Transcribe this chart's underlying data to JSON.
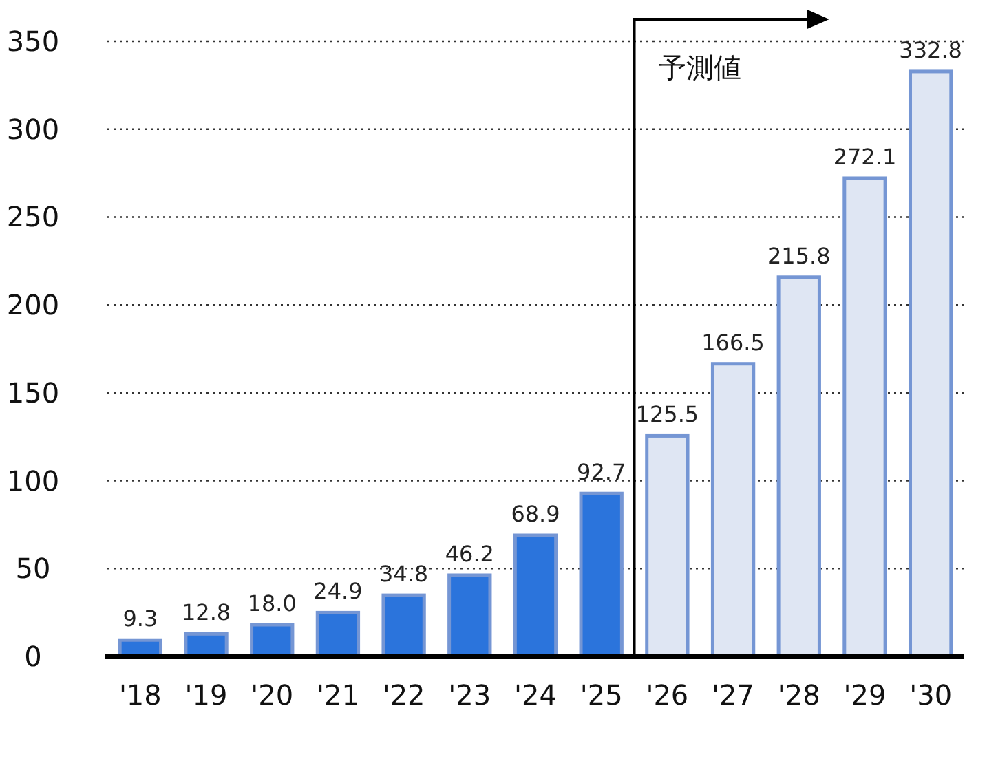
{
  "chart_data": {
    "type": "bar",
    "categories": [
      "'18",
      "'19",
      "'20",
      "'21",
      "'22",
      "'23",
      "'24",
      "'25",
      "'26",
      "'27",
      "'28",
      "'29",
      "'30"
    ],
    "values": [
      9.3,
      12.8,
      18.0,
      24.9,
      34.8,
      46.2,
      68.9,
      92.7,
      125.5,
      166.5,
      215.8,
      272.1,
      332.8
    ],
    "value_labels": [
      "9.3",
      "12.8",
      "18.0",
      "24.9",
      "34.8",
      "46.2",
      "68.9",
      "92.7",
      "125.5",
      "166.5",
      "215.8",
      "272.1",
      "332.8"
    ],
    "colors": [
      "#2b74dc",
      "#2b74dc",
      "#2b74dc",
      "#2b74dc",
      "#2b74dc",
      "#2b74dc",
      "#2b74dc",
      "#2b74dc",
      "#dfe6f3",
      "#dfe6f3",
      "#dfe6f3",
      "#dfe6f3",
      "#dfe6f3"
    ],
    "ylim": [
      0,
      350
    ],
    "yticks": [
      0,
      50,
      100,
      150,
      200,
      250,
      300,
      350
    ],
    "grid": "y",
    "annotations": [
      "予測値"
    ]
  }
}
